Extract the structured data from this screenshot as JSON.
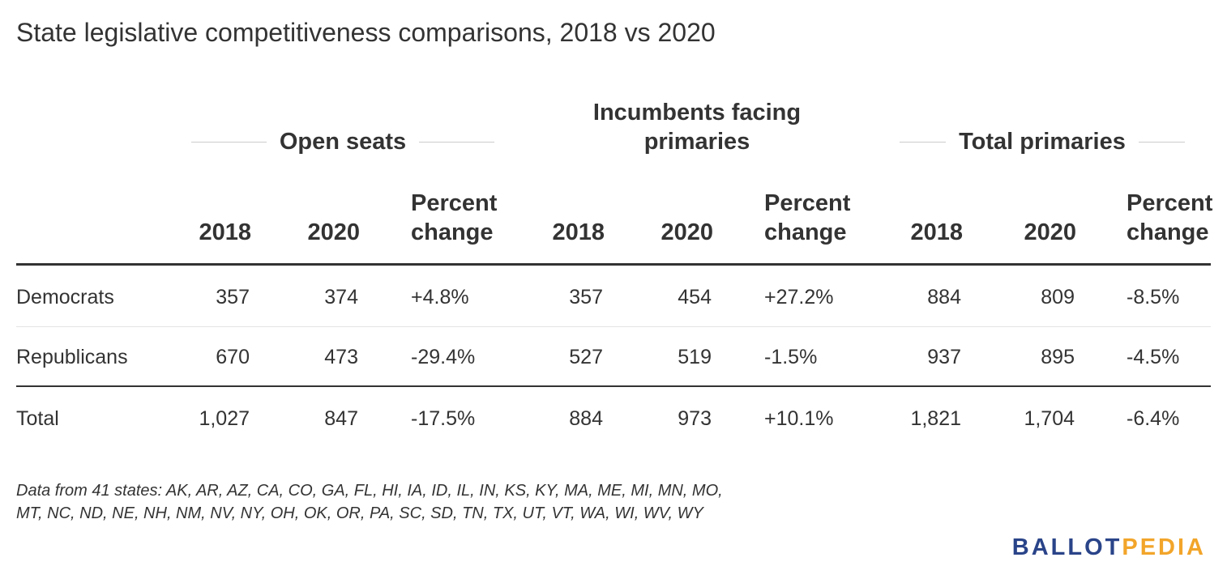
{
  "title": "State legislative competitiveness comparisons, 2018 vs 2020",
  "groups": {
    "open_seats": "Open seats",
    "incumbents_line1": "Incumbents facing",
    "incumbents_line2": "primaries",
    "total_primaries": "Total primaries"
  },
  "columns": {
    "y2018": "2018",
    "y2020": "2020",
    "pct_line1": "Percent",
    "pct_line2": "change"
  },
  "rows": [
    {
      "label": "Democrats",
      "open": [
        "357",
        "374",
        "+4.8%"
      ],
      "inc": [
        "357",
        "454",
        "+27.2%"
      ],
      "tot": [
        "884",
        "809",
        "-8.5%"
      ]
    },
    {
      "label": "Republicans",
      "open": [
        "670",
        "473",
        "-29.4%"
      ],
      "inc": [
        "527",
        "519",
        "-1.5%"
      ],
      "tot": [
        "937",
        "895",
        "-4.5%"
      ]
    },
    {
      "label": "Total",
      "open": [
        "1,027",
        "847",
        "-17.5%"
      ],
      "inc": [
        "884",
        "973",
        "+10.1%"
      ],
      "tot": [
        "1,821",
        "1,704",
        "-6.4%"
      ]
    }
  ],
  "footnote": {
    "line1": "Data from 41 states: AK, AR, AZ, CA, CO, GA, FL, HI, IA, ID, IL, IN, KS, KY, MA, ME, MI, MN, MO,",
    "line2": "MT, NC, ND, NE, NH, NM, NV, NY, OH, OK, OR, PA, SC, SD, TN, TX, UT, VT, WA, WI, WV, WY"
  },
  "logo": {
    "ballot": "BALLOT",
    "pedia": "PEDIA"
  },
  "colors": {
    "text": "#333333",
    "logo_blue": "#2a4489",
    "logo_orange": "#f2a52a",
    "rule_light": "#e3e3e3"
  }
}
